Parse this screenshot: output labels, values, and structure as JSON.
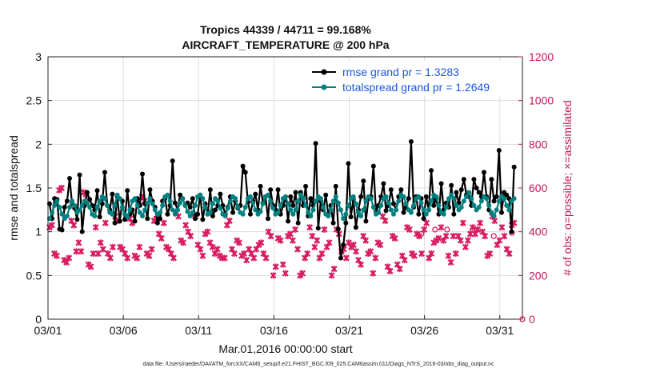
{
  "chart_data": {
    "type": "line",
    "title": [
      "Tropics 44339 / 44711 = 99.168%",
      "AIRCRAFT_TEMPERATURE @ 200 hPa"
    ],
    "xlabel": "Mar.01,2016 00:00:00 start",
    "ylabel": "rmse and totalspread",
    "y2label": "# of obs: o=possible; ×=assimilated",
    "xlim": [
      0,
      31.5
    ],
    "ylim": [
      0,
      3
    ],
    "y2lim": [
      0,
      1200
    ],
    "x_ticks": [
      0,
      5,
      10,
      15,
      20,
      25,
      30
    ],
    "x_tick_labels": [
      "03/01",
      "03/06",
      "03/11",
      "03/16",
      "03/21",
      "03/26",
      "03/31"
    ],
    "y_ticks": [
      0,
      0.5,
      1,
      1.5,
      2,
      2.5,
      3
    ],
    "y_tick_labels": [
      "0",
      "0.5",
      "1",
      "1.5",
      "2",
      "2.5",
      "3"
    ],
    "y2_ticks": [
      0,
      200,
      400,
      600,
      800,
      1000,
      1200
    ],
    "y2_tick_labels": [
      "0",
      "200",
      "400",
      "600",
      "800",
      "1000",
      "1200"
    ],
    "grid": true,
    "legend_position": "top-right",
    "series": [
      {
        "name": "rmse grand pr = 1.3283",
        "color": "#000000",
        "axis": "left",
        "values": [
          1.32,
          1.15,
          1.38,
          1.37,
          1.03,
          1.02,
          1.28,
          1.35,
          1.61,
          1.32,
          1.27,
          1.14,
          1.65,
          1.0,
          1.3,
          1.45,
          1.37,
          1.3,
          1.25,
          1.47,
          1.17,
          1.32,
          1.68,
          1.3,
          1.25,
          1.43,
          1.1,
          1.4,
          1.12,
          1.35,
          1.14,
          1.47,
          1.2,
          1.25,
          1.12,
          1.38,
          1.3,
          1.66,
          1.32,
          1.15,
          1.48,
          1.35,
          1.28,
          1.1,
          1.15,
          1.35,
          1.38,
          1.2,
          1.3,
          1.81,
          1.33,
          1.25,
          1.42,
          1.38,
          1.3,
          1.33,
          1.28,
          1.38,
          1.15,
          1.2,
          1.42,
          1.14,
          1.32,
          1.2,
          1.48,
          1.18,
          1.25,
          1.3,
          1.43,
          1.3,
          1.2,
          1.28,
          1.4,
          1.22,
          1.35,
          1.27,
          1.3,
          1.75,
          1.68,
          1.34,
          1.2,
          1.35,
          1.43,
          1.25,
          1.52,
          1.33,
          1.4,
          1.15,
          1.48,
          1.3,
          1.25,
          1.48,
          1.2,
          1.3,
          1.4,
          1.12,
          1.4,
          1.3,
          1.45,
          1.1,
          1.45,
          1.3,
          1.52,
          1.18,
          1.38,
          1.3,
          2.01,
          1.04,
          1.35,
          1.25,
          1.42,
          1.2,
          1.3,
          1.1,
          1.52,
          1.03,
          0.7,
          0.85,
          1.1,
          1.78,
          1.17,
          1.37,
          1.05,
          1.25,
          1.4,
          1.58,
          1.12,
          1.38,
          1.4,
          1.75,
          1.23,
          1.3,
          1.4,
          1.55,
          1.24,
          1.3,
          1.48,
          1.32,
          1.25,
          1.4,
          1.48,
          1.22,
          1.28,
          1.38,
          2.03,
          1.28,
          1.4,
          1.2,
          1.38,
          1.15,
          1.4,
          1.25,
          1.7,
          1.3,
          1.38,
          1.2,
          1.55,
          1.25,
          1.33,
          1.28,
          1.53,
          1.2,
          1.45,
          1.33,
          1.48,
          1.6,
          1.42,
          1.4,
          1.3,
          1.6,
          1.5,
          1.45,
          1.4,
          1.68,
          1.4,
          1.25,
          1.6,
          1.35,
          1.4,
          1.93,
          1.22,
          1.45,
          1.42,
          1.38,
          1.0,
          1.74
        ]
      },
      {
        "name": "totalspread grand pr = 1.2649",
        "color": "#008080",
        "axis": "left",
        "values": [
          1.15,
          1.22,
          1.3,
          1.35,
          1.28,
          1.2,
          1.15,
          1.18,
          1.28,
          1.35,
          1.3,
          1.22,
          1.25,
          1.3,
          1.35,
          1.33,
          1.28,
          1.2,
          1.18,
          1.28,
          1.35,
          1.4,
          1.38,
          1.3,
          1.22,
          1.2,
          1.3,
          1.42,
          1.38,
          1.28,
          1.2,
          1.17,
          1.25,
          1.35,
          1.38,
          1.3,
          1.22,
          1.18,
          1.25,
          1.33,
          1.38,
          1.32,
          1.25,
          1.2,
          1.22,
          1.3,
          1.4,
          1.42,
          1.35,
          1.25,
          1.2,
          1.25,
          1.33,
          1.38,
          1.3,
          1.23,
          1.18,
          1.22,
          1.3,
          1.4,
          1.42,
          1.38,
          1.28,
          1.2,
          1.22,
          1.32,
          1.38,
          1.35,
          1.27,
          1.2,
          1.18,
          1.27,
          1.35,
          1.4,
          1.38,
          1.28,
          1.22,
          1.2,
          1.28,
          1.38,
          1.4,
          1.33,
          1.25,
          1.2,
          1.23,
          1.32,
          1.4,
          1.42,
          1.35,
          1.27,
          1.2,
          1.22,
          1.3,
          1.38,
          1.4,
          1.32,
          1.25,
          1.2,
          1.25,
          1.35,
          1.42,
          1.38,
          1.3,
          1.22,
          1.18,
          1.25,
          1.35,
          1.4,
          1.38,
          1.28,
          1.2,
          1.18,
          1.25,
          1.35,
          1.4,
          1.33,
          1.25,
          1.15,
          1.2,
          1.3,
          1.38,
          1.4,
          1.32,
          1.22,
          1.18,
          1.25,
          1.35,
          1.4,
          1.38,
          1.28,
          1.2,
          1.22,
          1.3,
          1.38,
          1.4,
          1.33,
          1.25,
          1.2,
          1.25,
          1.35,
          1.42,
          1.4,
          1.32,
          1.25,
          1.22,
          1.3,
          1.38,
          1.4,
          1.33,
          1.25,
          1.2,
          1.25,
          1.35,
          1.42,
          1.4,
          1.3,
          1.22,
          1.2,
          1.28,
          1.38,
          1.42,
          1.38,
          1.3,
          1.25,
          1.28,
          1.35,
          1.4,
          1.45,
          1.38,
          1.3,
          1.25,
          1.28,
          1.35,
          1.4,
          1.38,
          1.3,
          1.22,
          1.18,
          1.25,
          1.35,
          1.4,
          1.38,
          1.3,
          1.25,
          1.35,
          1.38
        ]
      },
      {
        "name": "obs assimilated",
        "color": "#d81b60",
        "axis": "right",
        "marker": "x",
        "values": [
          420,
          430,
          300,
          290,
          590,
          600,
          270,
          260,
          280,
          450,
          430,
          310,
          350,
          310,
          580,
          570,
          250,
          240,
          300,
          420,
          300,
          350,
          320,
          440,
          300,
          280,
          330,
          470,
          450,
          330,
          320,
          300,
          280,
          460,
          440,
          290,
          280,
          330,
          560,
          540,
          300,
          290,
          320,
          450,
          460,
          390,
          370,
          440,
          330,
          320,
          300,
          280,
          490,
          470,
          360,
          350,
          430,
          400,
          380,
          480,
          470,
          340,
          320,
          290,
          390,
          400,
          350,
          330,
          300,
          320,
          290,
          280,
          280,
          430,
          450,
          320,
          300,
          360,
          350,
          290,
          300,
          270,
          320,
          300,
          280,
          320,
          340,
          350,
          300,
          280,
          400,
          380,
          200,
          240,
          370,
          360,
          250,
          210,
          380,
          390,
          360,
          410,
          320,
          200,
          210,
          280,
          300,
          420,
          380,
          330,
          360,
          280,
          300,
          410,
          330,
          350,
          200,
          230,
          410,
          390,
          310,
          320,
          280,
          350,
          330,
          340,
          310,
          270,
          250,
          380,
          360,
          300,
          310,
          210,
          280,
          350,
          340,
          470,
          450,
          240,
          220,
          380,
          370,
          250,
          230,
          290,
          270,
          420,
          410,
          300,
          290,
          390,
          380,
          300,
          410,
          440,
          280,
          300,
          350,
          360,
          370,
          420,
          360,
          380,
          290,
          260,
          380,
          300,
          380,
          360,
          440,
          330,
          360,
          390,
          420,
          390,
          410,
          440,
          400,
          380,
          290,
          300,
          470,
          450,
          340,
          360,
          420,
          380,
          320,
          300,
          430,
          440
        ]
      },
      {
        "name": "obs possible",
        "color": "#d81b60",
        "axis": "right",
        "marker": "o",
        "points": [
          [
            24.8,
            390
          ],
          [
            25.7,
            410
          ],
          [
            26.5,
            410
          ],
          [
            28.2,
            410
          ],
          [
            29.6,
            380
          ],
          [
            30.8,
            395
          ],
          [
            31.5,
            0
          ]
        ]
      }
    ]
  },
  "footer": "data file: /Users/raeder/DAI/ATM_forcXX/CAM6_setup/f.e21.FHIST_BGC.f09_025.CAM6assim.011/Diags_NTrS_2016-03/obs_diag_output.nc"
}
